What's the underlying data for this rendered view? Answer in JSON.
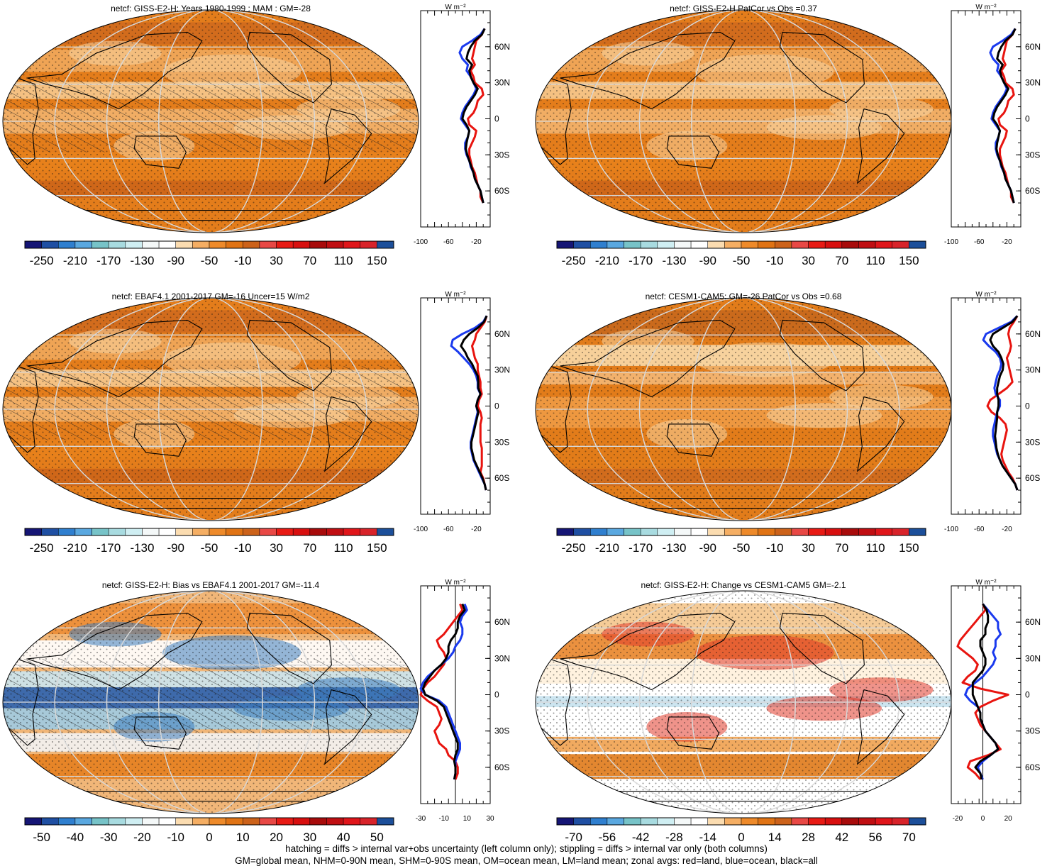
{
  "figure": {
    "footnote_line1": "hatching = diffs > internal var+obs uncertainty (left column only); stippling = diffs > internal var only (both columns)",
    "footnote_line2": "GM=global mean, NHM=0-90N mean, SHM=0-90S mean, OM=ocean mean, LM=land mean; zonal avgs: red=land, blue=ocean, black=all",
    "zonal_unit": "W m⁻²",
    "latitude_labels": [
      "60N",
      "30N",
      "0",
      "30S",
      "60S"
    ]
  },
  "colors": {
    "land": "#e8140f",
    "ocean": "#1a3aee",
    "all": "#000000"
  },
  "chart_data": [
    {
      "type": "heatmap",
      "title": "netcf: GISS-E2-H: Years 1980-1999 : MAM : GM=-28",
      "colorbar_labels": [
        "-250",
        "-210",
        "-170",
        "-130",
        "-90",
        "-50",
        "-10",
        "30",
        "70",
        "110",
        "150"
      ],
      "hatched": true,
      "zonal": {
        "x_ticks": [
          "-100",
          "-60",
          "-20"
        ],
        "xlim": [
          -100,
          0
        ],
        "zero_line": false,
        "lat": [
          75,
          70,
          65,
          60,
          55,
          50,
          45,
          40,
          35,
          30,
          25,
          20,
          15,
          10,
          5,
          0,
          -5,
          -10,
          -15,
          -20,
          -25,
          -30,
          -35,
          -40,
          -45,
          -50,
          -55,
          -60,
          -65,
          -70
        ],
        "series": [
          {
            "name": "land",
            "values": [
              -8,
              -12,
              -20,
              -22,
              -24,
              -26,
              -22,
              -28,
              -24,
              -22,
              -12,
              -10,
              -18,
              -20,
              -24,
              -32,
              -30,
              -20,
              -22,
              -26,
              -30,
              -30,
              -28,
              -26,
              -22,
              -20,
              -18,
              -14,
              -14,
              -10
            ]
          },
          {
            "name": "ocean",
            "values": [
              -8,
              -14,
              -26,
              -40,
              -44,
              -40,
              -32,
              -34,
              -28,
              -24,
              -20,
              -24,
              -30,
              -36,
              -40,
              -42,
              -36,
              -30,
              -32,
              -36,
              -36,
              -34,
              -30,
              -28,
              -24,
              -22,
              -18,
              -14,
              -12,
              -10
            ]
          },
          {
            "name": "all",
            "values": [
              -8,
              -12,
              -22,
              -28,
              -32,
              -34,
              -26,
              -30,
              -28,
              -24,
              -18,
              -22,
              -28,
              -34,
              -38,
              -40,
              -34,
              -30,
              -32,
              -34,
              -35,
              -33,
              -30,
              -27,
              -24,
              -22,
              -18,
              -14,
              -12,
              -10
            ]
          }
        ]
      }
    },
    {
      "type": "heatmap",
      "title": "netcf: GISS-E2-H PatCor vs Obs =0.37",
      "colorbar_labels": [
        "-250",
        "-210",
        "-170",
        "-130",
        "-90",
        "-50",
        "-10",
        "30",
        "70",
        "110",
        "150"
      ],
      "hatched": false,
      "zonal": {
        "x_ticks": [
          "-100",
          "-60",
          "-20"
        ],
        "xlim": [
          -100,
          0
        ],
        "zero_line": false,
        "lat": [
          75,
          70,
          65,
          60,
          55,
          50,
          45,
          40,
          35,
          30,
          25,
          20,
          15,
          10,
          5,
          0,
          -5,
          -10,
          -15,
          -20,
          -25,
          -30,
          -35,
          -40,
          -45,
          -50,
          -55,
          -60,
          -65,
          -70
        ],
        "series": [
          {
            "name": "land",
            "values": [
              -8,
              -12,
              -20,
              -22,
              -24,
              -26,
              -22,
              -28,
              -24,
              -22,
              -12,
              -10,
              -18,
              -20,
              -24,
              -32,
              -30,
              -20,
              -22,
              -26,
              -30,
              -30,
              -28,
              -26,
              -22,
              -20,
              -18,
              -14,
              -14,
              -10
            ]
          },
          {
            "name": "ocean",
            "values": [
              -8,
              -14,
              -26,
              -40,
              -44,
              -40,
              -32,
              -34,
              -28,
              -24,
              -20,
              -24,
              -30,
              -36,
              -40,
              -42,
              -36,
              -30,
              -32,
              -36,
              -36,
              -34,
              -30,
              -28,
              -24,
              -22,
              -18,
              -14,
              -12,
              -10
            ]
          },
          {
            "name": "all",
            "values": [
              -8,
              -12,
              -22,
              -28,
              -32,
              -34,
              -26,
              -30,
              -28,
              -24,
              -18,
              -22,
              -28,
              -34,
              -38,
              -40,
              -34,
              -30,
              -32,
              -34,
              -35,
              -33,
              -30,
              -27,
              -24,
              -22,
              -18,
              -14,
              -12,
              -10
            ]
          }
        ]
      }
    },
    {
      "type": "heatmap",
      "title": "netcf: EBAF4.1 2001-2017 GM=-16 Uncer=15 W/m2",
      "colorbar_labels": [
        "-250",
        "-210",
        "-170",
        "-130",
        "-90",
        "-50",
        "-10",
        "30",
        "70",
        "110",
        "150"
      ],
      "hatched": true,
      "zonal": {
        "x_ticks": [
          "-100",
          "-60",
          "-20"
        ],
        "xlim": [
          -100,
          0
        ],
        "zero_line": false,
        "lat": [
          75,
          70,
          65,
          60,
          55,
          50,
          45,
          40,
          35,
          30,
          25,
          20,
          15,
          10,
          5,
          0,
          -5,
          -10,
          -15,
          -20,
          -25,
          -30,
          -35,
          -40,
          -45,
          -50,
          -55,
          -60,
          -65,
          -70
        ],
        "series": [
          {
            "name": "land",
            "values": [
              -5,
              -8,
              -14,
              -20,
              -22,
              -26,
              -24,
              -22,
              -18,
              -18,
              -16,
              -14,
              -14,
              -12,
              -16,
              -18,
              -14,
              -12,
              -14,
              -14,
              -14,
              -14,
              -12,
              -12,
              -12,
              -12,
              -14,
              -10,
              -8,
              -6
            ]
          },
          {
            "name": "ocean",
            "values": [
              -5,
              -10,
              -22,
              -40,
              -54,
              -56,
              -46,
              -38,
              -30,
              -24,
              -20,
              -18,
              -18,
              -14,
              -18,
              -20,
              -18,
              -20,
              -22,
              -24,
              -26,
              -28,
              -28,
              -26,
              -24,
              -20,
              -16,
              -12,
              -8,
              -6
            ]
          },
          {
            "name": "all",
            "values": [
              -5,
              -9,
              -18,
              -30,
              -38,
              -42,
              -36,
              -32,
              -26,
              -22,
              -18,
              -17,
              -17,
              -14,
              -18,
              -20,
              -17,
              -19,
              -21,
              -23,
              -25,
              -27,
              -27,
              -25,
              -23,
              -19,
              -15,
              -11,
              -8,
              -6
            ]
          }
        ]
      }
    },
    {
      "type": "heatmap",
      "title": "netcf: CESM1-CAM5: GM=-26 PatCor vs Obs =0.68",
      "colorbar_labels": [
        "-250",
        "-210",
        "-170",
        "-130",
        "-90",
        "-50",
        "-10",
        "30",
        "70",
        "110",
        "150"
      ],
      "hatched": false,
      "zonal": {
        "x_ticks": [
          "-100",
          "-60",
          "-20"
        ],
        "xlim": [
          -100,
          0
        ],
        "zero_line": false,
        "lat": [
          75,
          70,
          65,
          60,
          55,
          50,
          45,
          40,
          35,
          30,
          25,
          20,
          15,
          10,
          5,
          0,
          -5,
          -10,
          -15,
          -20,
          -25,
          -30,
          -35,
          -40,
          -45,
          -50,
          -55,
          -60,
          -65,
          -70
        ],
        "series": [
          {
            "name": "land",
            "values": [
              -5,
              -10,
              -16,
              -18,
              -16,
              -14,
              -16,
              -20,
              -18,
              -16,
              -14,
              -12,
              -20,
              -32,
              -44,
              -48,
              -42,
              -30,
              -22,
              -20,
              -22,
              -24,
              -26,
              -28,
              -26,
              -22,
              -18,
              -12,
              -8,
              -5
            ]
          },
          {
            "name": "ocean",
            "values": [
              -5,
              -14,
              -32,
              -50,
              -54,
              -46,
              -36,
              -30,
              -28,
              -30,
              -34,
              -36,
              -38,
              -36,
              -30,
              -30,
              -34,
              -36,
              -38,
              -40,
              -40,
              -38,
              -36,
              -34,
              -30,
              -26,
              -20,
              -14,
              -8,
              -5
            ]
          },
          {
            "name": "all",
            "values": [
              -5,
              -12,
              -26,
              -40,
              -44,
              -40,
              -32,
              -28,
              -25,
              -26,
              -30,
              -32,
              -34,
              -34,
              -32,
              -32,
              -34,
              -34,
              -35,
              -36,
              -37,
              -36,
              -35,
              -33,
              -30,
              -26,
              -20,
              -14,
              -8,
              -5
            ]
          }
        ]
      }
    },
    {
      "type": "heatmap",
      "title": "netcf: GISS-E2-H: Bias vs EBAF4.1 2001-2017 GM=-11.4",
      "colorbar_labels": [
        "-50",
        "-40",
        "-30",
        "-20",
        "-10",
        "0",
        "10",
        "20",
        "30",
        "40",
        "50"
      ],
      "hatched": true,
      "zonal": {
        "x_ticks": [
          "-30",
          "-10",
          "10",
          "30"
        ],
        "xlim": [
          -30,
          30
        ],
        "zero_line": true,
        "lat": [
          75,
          70,
          65,
          60,
          55,
          50,
          45,
          40,
          35,
          30,
          25,
          20,
          15,
          10,
          5,
          0,
          -5,
          -10,
          -15,
          -20,
          -25,
          -30,
          -35,
          -40,
          -45,
          -50,
          -55,
          -60,
          -65,
          -70
        ],
        "series": [
          {
            "name": "land",
            "values": [
              4,
              6,
              2,
              -2,
              -6,
              -10,
              -16,
              -14,
              -10,
              -8,
              -10,
              -14,
              -18,
              -24,
              -28,
              -30,
              -24,
              -16,
              -14,
              -12,
              -14,
              -18,
              -16,
              -14,
              -8,
              -6,
              0,
              2,
              2,
              0
            ]
          },
          {
            "name": "ocean",
            "values": [
              8,
              10,
              6,
              4,
              6,
              6,
              4,
              0,
              -2,
              -6,
              -12,
              -18,
              -24,
              -28,
              -30,
              -26,
              -14,
              -8,
              -6,
              -4,
              -2,
              0,
              2,
              4,
              4,
              2,
              0,
              0,
              0,
              -1
            ]
          },
          {
            "name": "all",
            "values": [
              6,
              8,
              4,
              2,
              2,
              0,
              -4,
              -6,
              -6,
              -8,
              -12,
              -18,
              -22,
              -26,
              -28,
              -26,
              -16,
              -10,
              -8,
              -6,
              -4,
              -2,
              0,
              2,
              2,
              0,
              -1,
              0,
              0,
              -1
            ]
          }
        ]
      }
    },
    {
      "type": "heatmap",
      "title": "netcf: GISS-E2-H: Change vs CESM1-CAM5 GM=-2.1",
      "colorbar_labels": [
        "-70",
        "-56",
        "-42",
        "-28",
        "-14",
        "0",
        "14",
        "28",
        "42",
        "56",
        "70"
      ],
      "hatched": false,
      "zonal": {
        "x_ticks": [
          "-20",
          "0",
          "20"
        ],
        "xlim": [
          -25,
          30
        ],
        "zero_line": true,
        "lat": [
          75,
          70,
          65,
          60,
          55,
          50,
          45,
          40,
          35,
          30,
          25,
          20,
          15,
          10,
          5,
          0,
          -5,
          -10,
          -15,
          -20,
          -25,
          -30,
          -35,
          -40,
          -45,
          -50,
          -55,
          -60,
          -65,
          -70
        ],
        "series": [
          {
            "name": "land",
            "values": [
              0,
              2,
              -2,
              -6,
              -10,
              -14,
              -18,
              -20,
              -14,
              -8,
              -4,
              -6,
              -12,
              -16,
              -2,
              20,
              8,
              -2,
              -6,
              -4,
              -2,
              2,
              6,
              10,
              14,
              4,
              -10,
              -12,
              -6,
              -2
            ]
          },
          {
            "name": "ocean",
            "values": [
              0,
              4,
              8,
              12,
              12,
              14,
              10,
              10,
              8,
              10,
              8,
              4,
              0,
              -6,
              -12,
              -14,
              -10,
              -4,
              -2,
              -2,
              0,
              2,
              6,
              10,
              12,
              6,
              0,
              -4,
              -2,
              0
            ]
          },
          {
            "name": "all",
            "values": [
              0,
              3,
              4,
              4,
              2,
              2,
              -2,
              -2,
              0,
              2,
              2,
              0,
              -4,
              -8,
              -8,
              -8,
              -6,
              -4,
              -2,
              -2,
              0,
              2,
              6,
              10,
              12,
              6,
              -2,
              -6,
              -2,
              -1
            ]
          }
        ]
      }
    }
  ]
}
